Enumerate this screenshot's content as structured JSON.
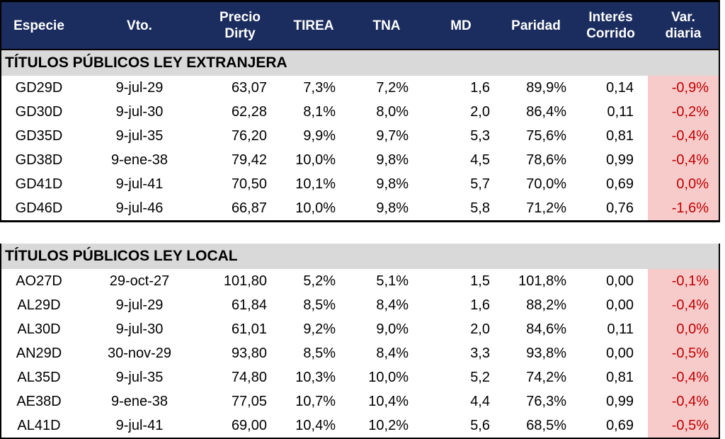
{
  "table": {
    "columns": [
      "Especie",
      "Vto.",
      "Precio\nDirty",
      "TIREA",
      "TNA",
      "MD",
      "Paridad",
      "Interés\nCorrido",
      "Var.\ndiaria"
    ],
    "sections": [
      {
        "title": "TÍTULOS PÚBLICOS LEY EXTRANJERA",
        "rows": [
          [
            "GD29D",
            "9-jul-29",
            "63,07",
            "7,3%",
            "7,2%",
            "1,6",
            "89,9%",
            "0,14",
            "-0,9%"
          ],
          [
            "GD30D",
            "9-jul-30",
            "62,28",
            "8,1%",
            "8,0%",
            "2,0",
            "86,4%",
            "0,11",
            "-0,2%"
          ],
          [
            "GD35D",
            "9-jul-35",
            "76,20",
            "9,9%",
            "9,7%",
            "5,3",
            "75,6%",
            "0,81",
            "-0,4%"
          ],
          [
            "GD38D",
            "9-ene-38",
            "79,42",
            "10,0%",
            "9,8%",
            "4,5",
            "78,6%",
            "0,99",
            "-0,4%"
          ],
          [
            "GD41D",
            "9-jul-41",
            "70,50",
            "10,1%",
            "9,8%",
            "5,7",
            "70,0%",
            "0,69",
            "0,0%"
          ],
          [
            "GD46D",
            "9-jul-46",
            "66,87",
            "10,0%",
            "9,8%",
            "5,8",
            "71,2%",
            "0,76",
            "-1,6%"
          ]
        ]
      },
      {
        "title": "TÍTULOS PÚBLICOS LEY LOCAL",
        "rows": [
          [
            "AO27D",
            "29-oct-27",
            "101,80",
            "5,2%",
            "5,1%",
            "1,5",
            "101,8%",
            "0,00",
            "-0,1%"
          ],
          [
            "AL29D",
            "9-jul-29",
            "61,84",
            "8,5%",
            "8,4%",
            "1,6",
            "88,2%",
            "0,00",
            "-0,4%"
          ],
          [
            "AL30D",
            "9-jul-30",
            "61,01",
            "9,2%",
            "9,0%",
            "2,0",
            "84,6%",
            "0,11",
            "0,0%"
          ],
          [
            "AN29D",
            "30-nov-29",
            "93,80",
            "8,5%",
            "8,4%",
            "3,3",
            "93,8%",
            "0,00",
            "-0,5%"
          ],
          [
            "AL35D",
            "9-jul-35",
            "74,80",
            "10,3%",
            "10,0%",
            "5,2",
            "74,2%",
            "0,81",
            "-0,4%"
          ],
          [
            "AE38D",
            "9-ene-38",
            "77,05",
            "10,7%",
            "10,4%",
            "4,4",
            "76,3%",
            "0,99",
            "-0,4%"
          ],
          [
            "AL41D",
            "9-jul-41",
            "69,00",
            "10,4%",
            "10,2%",
            "5,6",
            "68,5%",
            "0,69",
            "-0,5%"
          ]
        ]
      }
    ]
  },
  "colors": {
    "header_bg": "#1B2D5E",
    "header_text": "#FFFFFF",
    "section_bg": "#D9D9D9",
    "var_cell_bg": "#F8CBCB",
    "var_text": "#C00000",
    "body_text": "#000000",
    "border": "#000000"
  }
}
